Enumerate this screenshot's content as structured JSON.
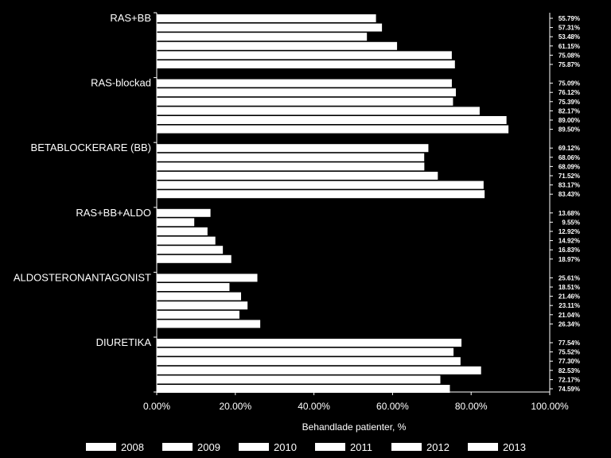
{
  "chart_data": {
    "type": "bar",
    "orientation": "horizontal",
    "title": "",
    "xlabel": "Behandlade patienter, %",
    "ylabel": "",
    "xlim": [
      0,
      100
    ],
    "xticks": [
      "0.00%",
      "20.00%",
      "40.00%",
      "60.00%",
      "80.00%",
      "100.00%"
    ],
    "categories": [
      "RAS+BB",
      "RAS-blockad",
      "BETABLOCKERARE (BB)",
      "RAS+BB+ALDO",
      "ALDOSTERONANTAGONIST",
      "DIURETIKA"
    ],
    "series": [
      {
        "name": "2008",
        "values": [
          55.79,
          75.09,
          69.12,
          13.68,
          25.61,
          77.54
        ],
        "labels": [
          "55.79%",
          "75.09%",
          "69.12%",
          "13.68%",
          "25.61%",
          "77.54%"
        ]
      },
      {
        "name": "2009",
        "values": [
          57.31,
          76.12,
          68.06,
          9.55,
          18.51,
          75.52
        ],
        "labels": [
          "57.31%",
          "76.12%",
          "68.06%",
          "9.55%",
          "18.51%",
          "75.52%"
        ]
      },
      {
        "name": "2010",
        "values": [
          53.48,
          75.39,
          68.09,
          12.92,
          21.46,
          77.3
        ],
        "labels": [
          "53.48%",
          "75.39%",
          "68.09%",
          "12.92%",
          "21.46%",
          "77.30%"
        ]
      },
      {
        "name": "2011",
        "values": [
          61.15,
          82.17,
          71.52,
          14.92,
          23.11,
          82.53
        ],
        "labels": [
          "61.15%",
          "82.17%",
          "71.52%",
          "14.92%",
          "23.11%",
          "82.53%"
        ]
      },
      {
        "name": "2012",
        "values": [
          75.08,
          89.0,
          83.17,
          16.83,
          21.04,
          72.17
        ],
        "labels": [
          "75.08%",
          "89.00%",
          "83.17%",
          "16.83%",
          "21.04%",
          "72.17%"
        ]
      },
      {
        "name": "2013",
        "values": [
          75.87,
          89.5,
          83.43,
          18.97,
          26.34,
          74.59
        ],
        "labels": [
          "75.87%",
          "89.50%",
          "83.43%",
          "18.97%",
          "26.34%",
          "74.59%"
        ]
      }
    ],
    "grid": false,
    "legend_position": "bottom",
    "colors": {
      "background": "#000000",
      "bar": "#ffffff",
      "axis": "#ffffff",
      "text": "#ffffff"
    }
  }
}
